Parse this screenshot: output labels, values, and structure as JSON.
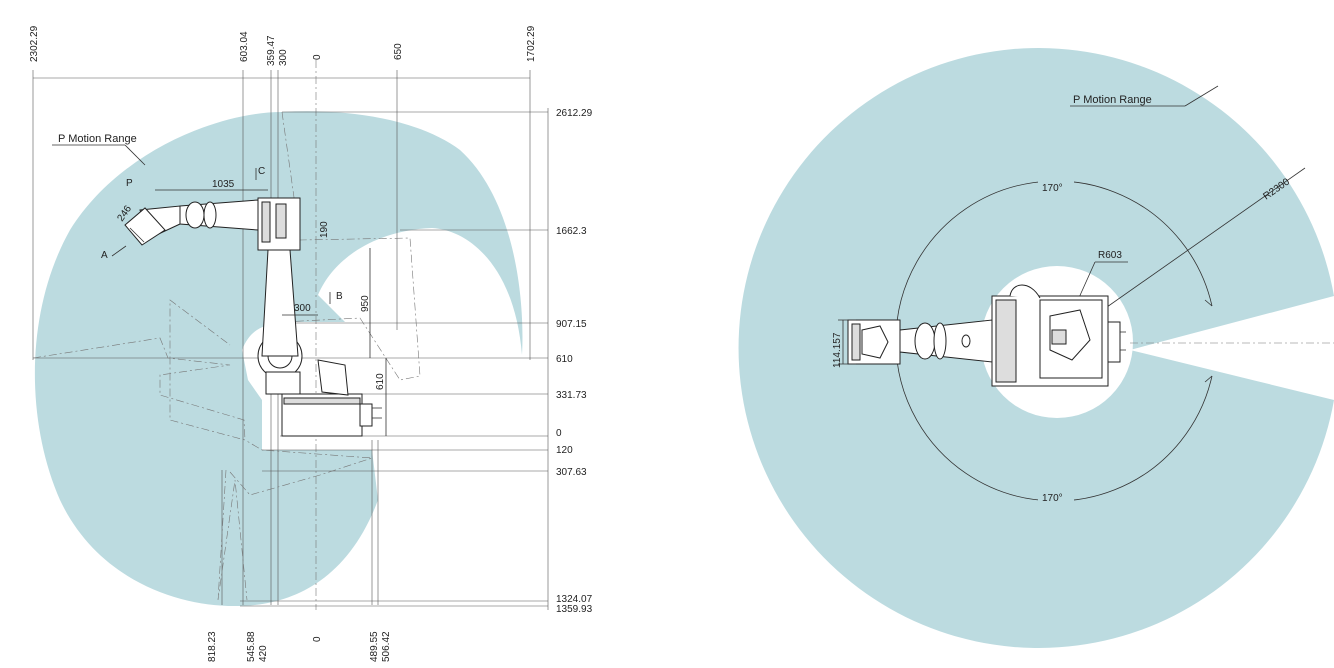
{
  "side_view": {
    "range_label": "P Motion Range",
    "top_dims": [
      "2302.29",
      "603.04",
      "359.47",
      "300",
      "0",
      "650",
      "1702.29"
    ],
    "right_dims": [
      "2612.29",
      "1662.3",
      "907.15",
      "610",
      "331.73",
      "0",
      "120",
      "307.63",
      "1324.07",
      "1359.93"
    ],
    "bottom_dims": [
      "818.23",
      "545.88",
      "420",
      "0",
      "489.55",
      "506.42"
    ],
    "inner_dims": {
      "d1035": "1035",
      "d246": "246",
      "d190": "190",
      "d950": "950",
      "d300": "300",
      "d610": "610"
    },
    "markers": {
      "p": "P",
      "a": "A",
      "b": "B",
      "c": "C"
    }
  },
  "top_view": {
    "range_label": "P Motion Range",
    "angle_top": "170°",
    "angle_bottom": "170°",
    "r_outer": "R2300",
    "r_inner": "R603",
    "d114": "114.157"
  },
  "colors": {
    "range_fill": "#bcdbe0"
  }
}
